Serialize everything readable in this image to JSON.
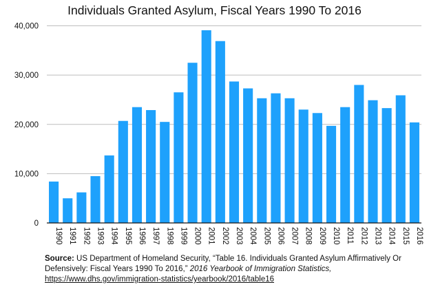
{
  "chart_data": {
    "type": "bar",
    "title": "Individuals Granted Asylum, Fiscal Years 1990 To 2016",
    "xlabel": "",
    "ylabel": "",
    "ylim": [
      0,
      40000
    ],
    "yticks": [
      "0",
      "10,000",
      "20,000",
      "30,000",
      "40,000"
    ],
    "grid": true,
    "bar_color": "#1ea1fc",
    "categories": [
      "1990",
      "1991",
      "1992",
      "1993",
      "1994",
      "1995",
      "1996",
      "1997",
      "1998",
      "1999",
      "2000",
      "2001",
      "2002",
      "2003",
      "2004",
      "2005",
      "2006",
      "2007",
      "2008",
      "2009",
      "2010",
      "2011",
      "2012",
      "2013",
      "2014",
      "2015",
      "2016"
    ],
    "values": [
      8400,
      5000,
      6200,
      9500,
      13700,
      20700,
      23500,
      22900,
      20500,
      26500,
      32500,
      39100,
      36900,
      28700,
      27300,
      25300,
      26300,
      25300,
      23000,
      22300,
      19700,
      23500,
      28000,
      24900,
      23300,
      25900,
      20400
    ]
  },
  "source": {
    "label": "Source:",
    "text": " US Department of Homeland Security, “Table 16. Individuals Granted Asylum Affirmatively Or Defensively: Fiscal Years 1990 To 2016,” ",
    "publication": "2016 Yearbook of Immigration Statistics,",
    "url": "https://www.dhs.gov/immigration-statistics/yearbook/2016/table16"
  }
}
